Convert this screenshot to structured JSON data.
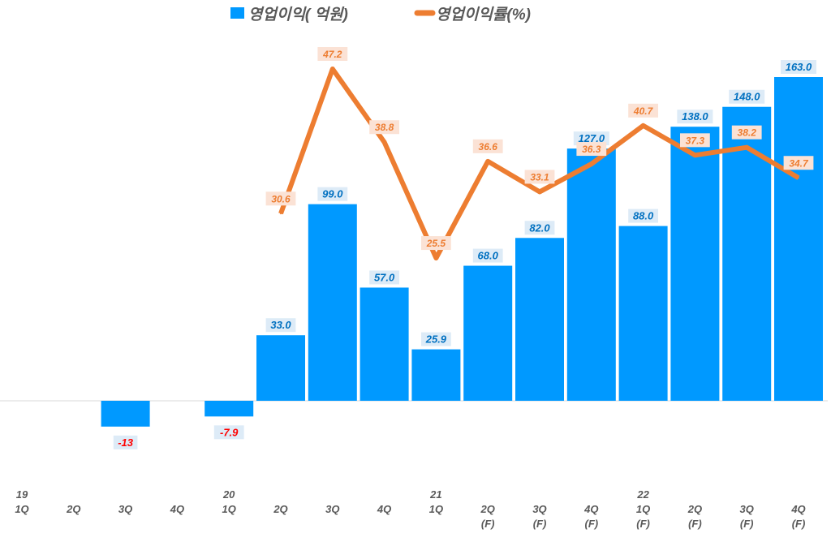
{
  "chart_data": {
    "type": "bar+line",
    "title": "",
    "legend_position": "top",
    "grid": false,
    "categories": [
      [
        "19",
        "1Q"
      ],
      [
        "",
        "2Q"
      ],
      [
        "",
        "3Q"
      ],
      [
        "",
        "4Q"
      ],
      [
        "20",
        "1Q"
      ],
      [
        "",
        "2Q"
      ],
      [
        "",
        "3Q"
      ],
      [
        "",
        "4Q"
      ],
      [
        "21",
        "1Q"
      ],
      [
        "",
        "2Q",
        "(F)"
      ],
      [
        "",
        "3Q",
        "(F)"
      ],
      [
        "",
        "4Q",
        "(F)"
      ],
      [
        "22",
        "1Q",
        "(F)"
      ],
      [
        "",
        "2Q",
        "(F)"
      ],
      [
        "",
        "3Q",
        "(F)"
      ],
      [
        "",
        "4Q",
        "(F)"
      ]
    ],
    "series": [
      {
        "name": "영업이익( 억원)",
        "kind": "bar",
        "color": "#0099FF",
        "values": [
          null,
          null,
          -13,
          null,
          -7.9,
          33.0,
          99.0,
          57.0,
          25.9,
          68.0,
          82.0,
          127.0,
          88.0,
          138.0,
          148.0,
          163.0
        ],
        "labels": [
          "",
          "",
          "-13",
          "",
          "-7.9",
          "33.0",
          "99.0",
          "57.0",
          "25.9",
          "68.0",
          "82.0",
          "127.0",
          "88.0",
          "138.0",
          "148.0",
          "163.0"
        ]
      },
      {
        "name": "영업이익률(%)",
        "kind": "line",
        "axis": "secondary",
        "color": "#ED7D31",
        "values": [
          null,
          null,
          null,
          null,
          null,
          30.6,
          47.2,
          38.8,
          25.5,
          36.6,
          33.1,
          36.3,
          40.7,
          37.3,
          38.2,
          34.7
        ],
        "labels": [
          "",
          "",
          "",
          "",
          "",
          "30.6",
          "47.2",
          "38.8",
          "25.5",
          "36.6",
          "33.1",
          "36.3",
          "40.7",
          "37.3",
          "38.2",
          "34.7"
        ]
      }
    ],
    "negative_label_color": "#FF0000"
  }
}
